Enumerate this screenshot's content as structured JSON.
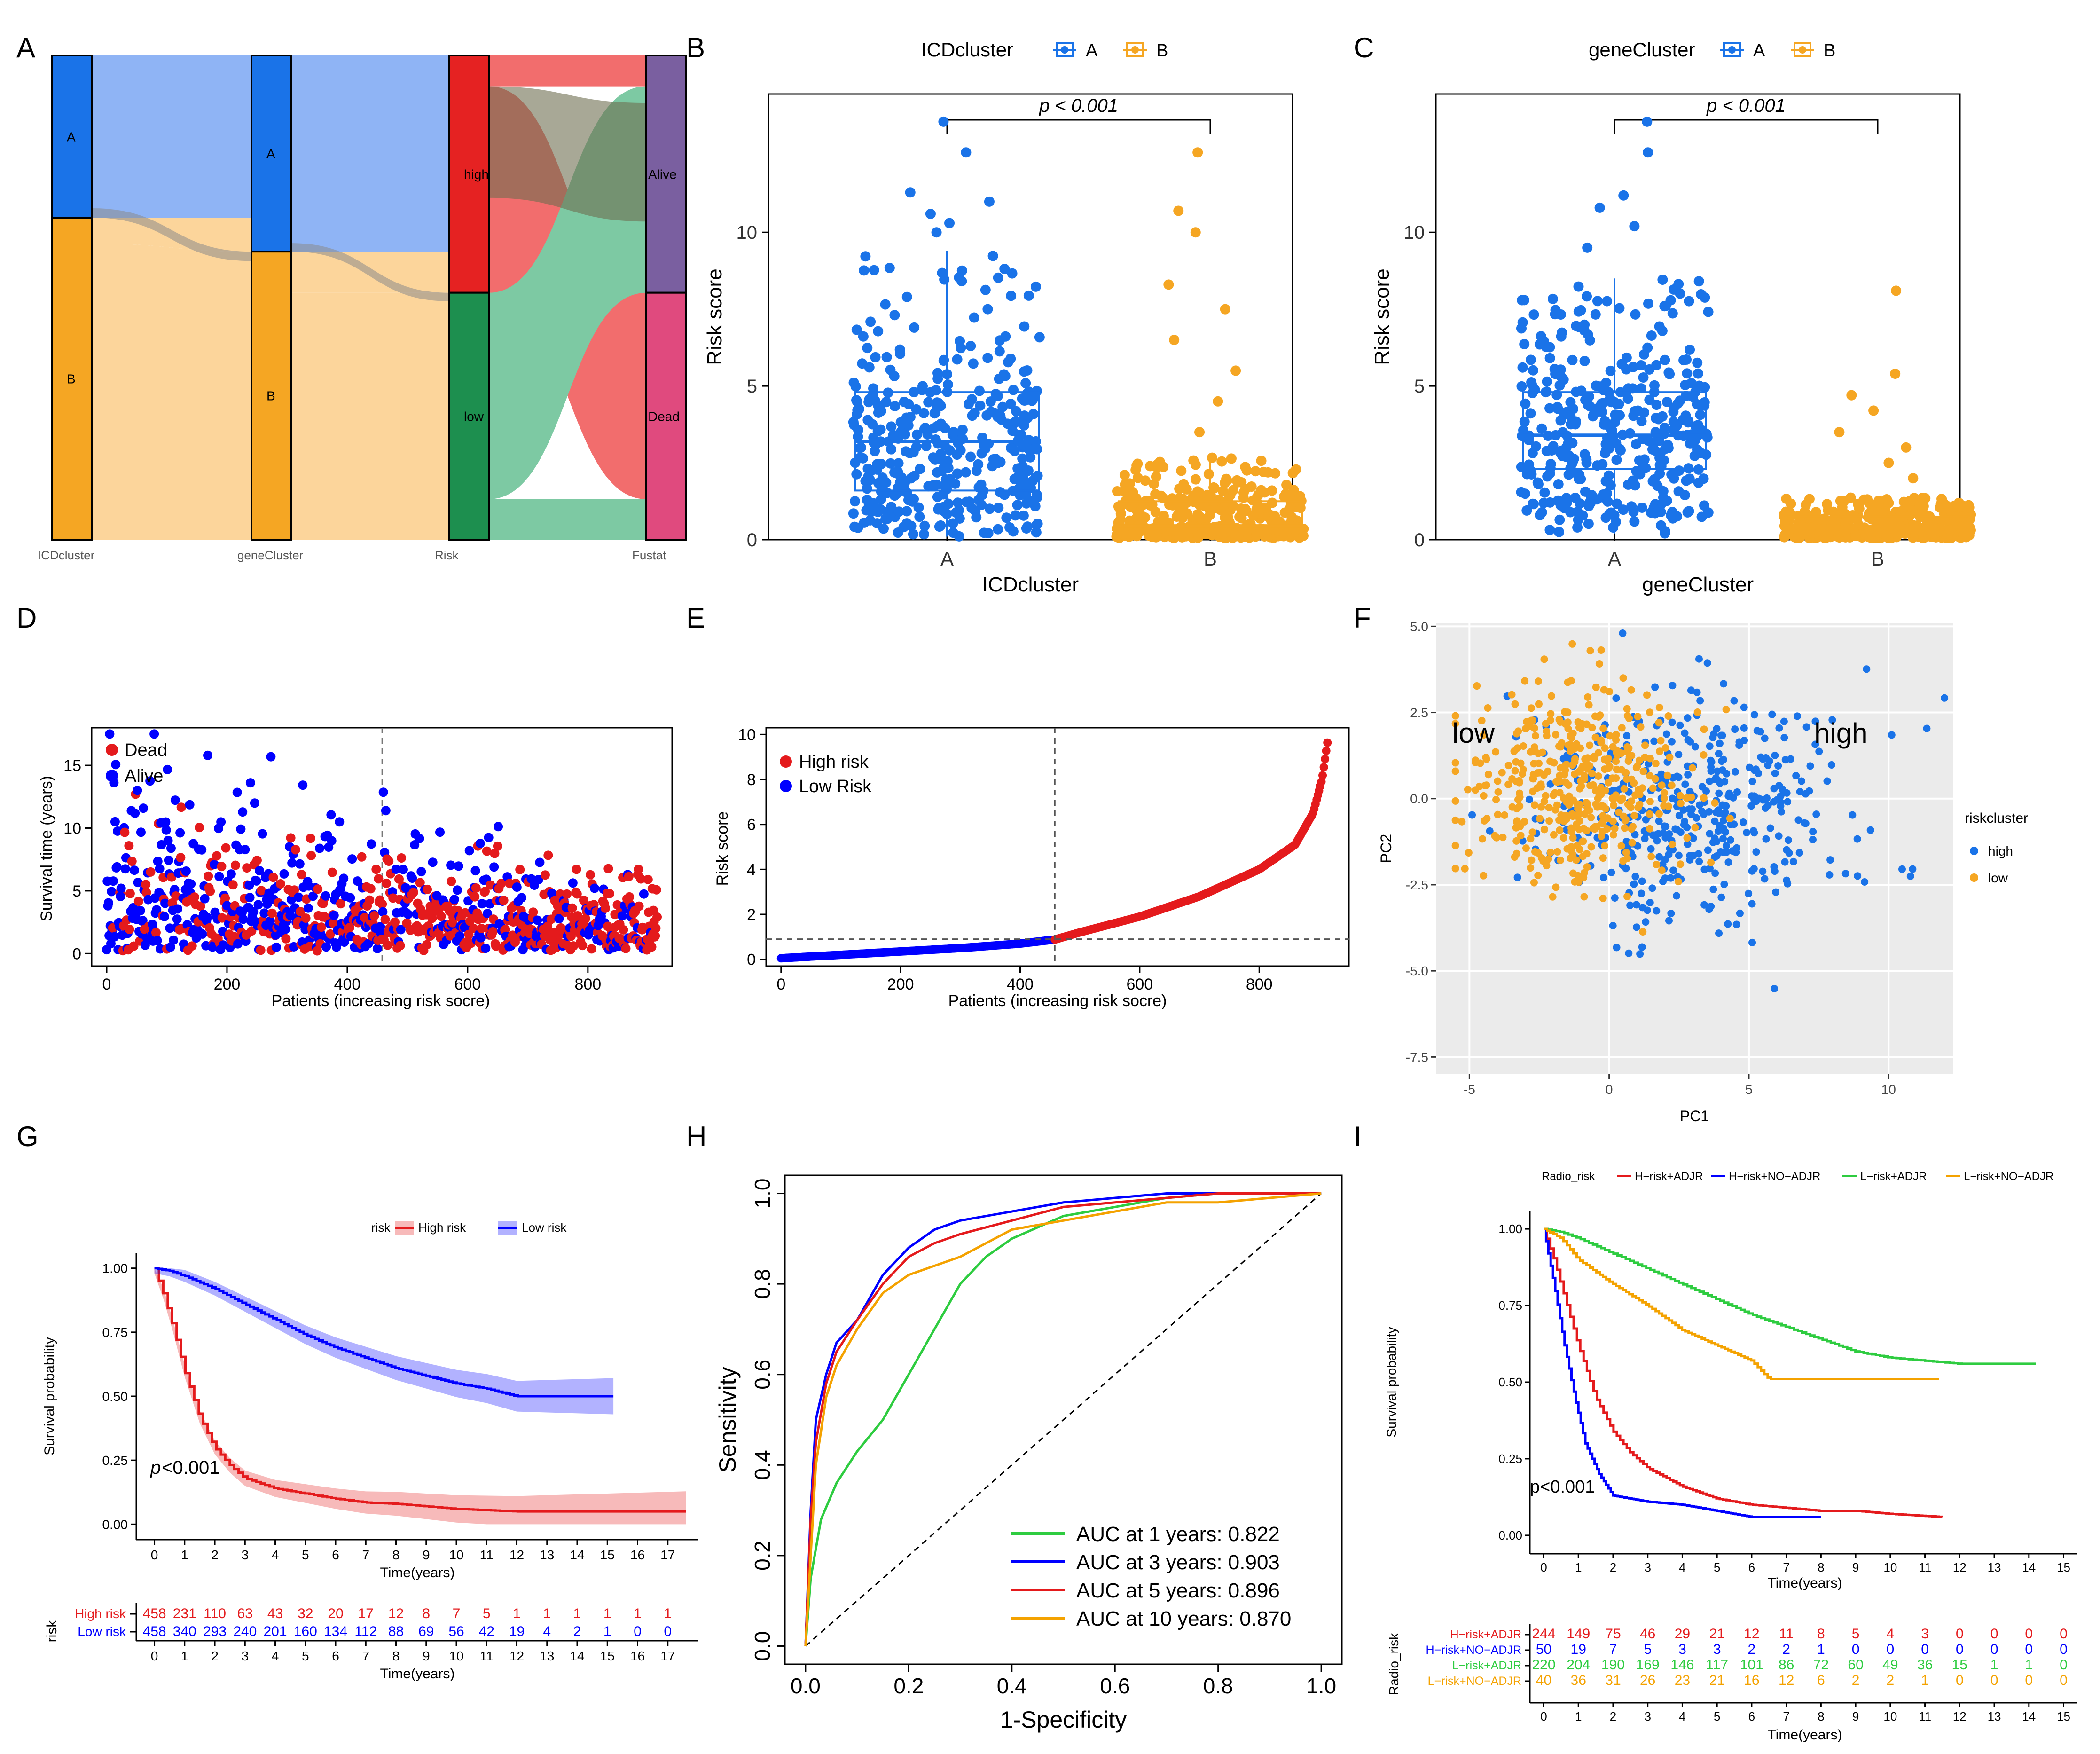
{
  "colors": {
    "blue": "#1a73e8",
    "orange": "#f5a623",
    "red": "#e41a1c",
    "dblue": "#0000ff",
    "green": "#2ecc40",
    "gold": "#f4a200",
    "sankeyBlue": "#8fb4f5",
    "sankeyOrange": "#fcd59b",
    "riskHigh": "#f26d6d",
    "riskLow": "#7dc9a3",
    "alive": "#7a5fa0",
    "dead": "#e04a7e",
    "high": "#e52222",
    "low": "#1d8f4f"
  },
  "panels": {
    "A": "A",
    "B": "B",
    "C": "C",
    "D": "D",
    "E": "E",
    "F": "F",
    "G": "G",
    "H": "H",
    "I": "I"
  },
  "chart_data": [
    {
      "id": "A",
      "type": "sankey",
      "axes": [
        "ICDcluster",
        "geneCluster",
        "Risk",
        "Fustat"
      ],
      "nodes": {
        "ICDcluster": [
          {
            "name": "A",
            "share": 0.335
          },
          {
            "name": "B",
            "share": 0.665
          }
        ],
        "geneCluster": [
          {
            "name": "A",
            "share": 0.405
          },
          {
            "name": "B",
            "share": 0.595
          }
        ],
        "Risk": [
          {
            "name": "high",
            "share": 0.49
          },
          {
            "name": "low",
            "share": 0.51
          }
        ],
        "Fustat": [
          {
            "name": "Alive",
            "share": 0.49
          },
          {
            "name": "Dead",
            "share": 0.51
          }
        ]
      }
    },
    {
      "id": "B",
      "type": "box",
      "title": "ICDcluster",
      "legend": [
        "A",
        "B"
      ],
      "xlabel": "ICDcluster",
      "ylabel": "Risk score",
      "categories": [
        "A",
        "B"
      ],
      "ylim": [
        0,
        14.5
      ],
      "yticks": [
        0,
        5,
        10
      ],
      "pvalue": "p < 0.001",
      "boxes": [
        {
          "name": "A",
          "min": 0.1,
          "q1": 1.6,
          "median": 3.2,
          "q3": 4.8,
          "max": 9.4,
          "outliers": [
            10,
            10.3,
            10.6,
            11.0,
            11.3,
            12.6,
            13.6
          ]
        },
        {
          "name": "B",
          "min": 0.05,
          "q1": 0.25,
          "median": 0.45,
          "q3": 1.25,
          "max": 2.7,
          "outliers": [
            3.5,
            4.5,
            5.5,
            6.5,
            7.5,
            8.3,
            10.0,
            10.7,
            12.6
          ]
        }
      ]
    },
    {
      "id": "C",
      "type": "box",
      "title": "geneCluster",
      "legend": [
        "A",
        "B"
      ],
      "xlabel": "geneCluster",
      "ylabel": "Risk score",
      "categories": [
        "A",
        "B"
      ],
      "ylim": [
        0,
        14.5
      ],
      "yticks": [
        0,
        5,
        10
      ],
      "pvalue": "p < 0.001",
      "boxes": [
        {
          "name": "A",
          "min": 0.2,
          "q1": 2.3,
          "median": 3.4,
          "q3": 4.8,
          "max": 8.5,
          "outliers": [
            9.5,
            10.2,
            10.8,
            11.2,
            12.6,
            13.6
          ]
        },
        {
          "name": "B",
          "min": 0.05,
          "q1": 0.25,
          "median": 0.4,
          "q3": 0.75,
          "max": 1.4,
          "outliers": [
            2,
            2.5,
            3,
            3.5,
            4.2,
            4.7,
            5.4,
            8.1
          ]
        }
      ]
    },
    {
      "id": "D",
      "type": "scatter",
      "xlabel": "Patients (increasing risk socre)",
      "ylabel": "Survival time (years)",
      "xlim": [
        0,
        912
      ],
      "ylim": [
        0,
        18
      ],
      "xticks": [
        0,
        200,
        400,
        600,
        800
      ],
      "yticks": [
        0,
        5,
        10,
        15
      ],
      "cutoff": 458,
      "n": 916,
      "legend": [
        "Dead",
        "Alive"
      ]
    },
    {
      "id": "E",
      "type": "scatter",
      "xlabel": "Patients (increasing risk socre)",
      "ylabel": "Risk score",
      "xlim": [
        0,
        916
      ],
      "ylim": [
        0,
        10.3
      ],
      "xticks": [
        0,
        200,
        400,
        600,
        800
      ],
      "yticks": [
        0,
        2,
        4,
        6,
        8,
        10
      ],
      "cutoff_x": 458,
      "cutoff_y": 0.9,
      "legend": [
        "High risk",
        "Low Risk"
      ],
      "curve": [
        [
          0,
          0.05
        ],
        [
          100,
          0.2
        ],
        [
          200,
          0.35
        ],
        [
          300,
          0.5
        ],
        [
          400,
          0.7
        ],
        [
          458,
          0.88
        ],
        [
          500,
          1.2
        ],
        [
          600,
          1.9
        ],
        [
          700,
          2.8
        ],
        [
          800,
          4.0
        ],
        [
          860,
          5.1
        ],
        [
          890,
          6.5
        ],
        [
          905,
          8.0
        ],
        [
          916,
          10.0
        ]
      ]
    },
    {
      "id": "F",
      "type": "scatter",
      "xlabel": "PC1",
      "ylabel": "PC2",
      "xlim": [
        -6.2,
        12.3
      ],
      "ylim": [
        -8.0,
        5.1
      ],
      "xticks": [
        -5,
        0,
        5,
        10
      ],
      "yticks": [
        5.0,
        2.5,
        0.0,
        -2.5,
        -5.0,
        -7.5
      ],
      "ytick_labels": [
        "5.0",
        "2.5",
        "0.0",
        "-2.5",
        "-5.0",
        "-7.5"
      ],
      "legend_title": "riskcluster",
      "legend": [
        "high",
        "low"
      ],
      "annotations": [
        "low",
        "high"
      ]
    },
    {
      "id": "G",
      "type": "line",
      "legend_title": "risk",
      "legend": [
        "High risk",
        "Low risk"
      ],
      "xlabel": "Time(years)",
      "ylabel": "Survival probability",
      "xticks": [
        0,
        1,
        2,
        3,
        4,
        5,
        6,
        7,
        8,
        9,
        10,
        11,
        12,
        13,
        14,
        15,
        16,
        17
      ],
      "yticks": [
        0.0,
        0.25,
        0.5,
        0.75,
        1.0
      ],
      "ytick_labels": [
        "0.00",
        "0.25",
        "0.50",
        "0.75",
        "1.00"
      ],
      "pvalue_prefix": "p",
      "pvalue_suffix": "<0.001",
      "series": [
        {
          "name": "High risk",
          "x": [
            0,
            0.3,
            0.6,
            1.0,
            1.5,
            2.0,
            2.5,
            3.0,
            4.0,
            5.0,
            6.0,
            7.0,
            8.0,
            9.0,
            10.0,
            11.0,
            12.0,
            17.6
          ],
          "y": [
            1.0,
            0.9,
            0.78,
            0.6,
            0.42,
            0.3,
            0.23,
            0.18,
            0.14,
            0.12,
            0.1,
            0.085,
            0.08,
            0.07,
            0.06,
            0.055,
            0.05,
            0.05
          ]
        },
        {
          "name": "Low risk",
          "x": [
            0,
            0.5,
            1,
            2,
            3,
            4,
            5,
            6,
            7,
            8,
            9,
            10,
            11,
            12,
            13,
            15.2
          ],
          "y": [
            1.0,
            0.99,
            0.97,
            0.92,
            0.86,
            0.8,
            0.74,
            0.69,
            0.65,
            0.61,
            0.58,
            0.55,
            0.53,
            0.5,
            0.5,
            0.5
          ]
        }
      ],
      "risk_table": {
        "title": "risk",
        "rows": [
          {
            "name": "High risk",
            "values": [
              "458",
              "231",
              "110",
              "63",
              "43",
              "32",
              "20",
              "17",
              "12",
              "8",
              "7",
              "5",
              "1",
              "1",
              "1",
              "1",
              "1",
              "1"
            ]
          },
          {
            "name": "Low risk",
            "values": [
              "458",
              "340",
              "293",
              "240",
              "201",
              "160",
              "134",
              "112",
              "88",
              "69",
              "56",
              "42",
              "19",
              "4",
              "2",
              "1",
              "0",
              "0"
            ]
          }
        ],
        "xlabel": "Time(years)"
      }
    },
    {
      "id": "H",
      "type": "line",
      "xlabel": "1-Specificity",
      "ylabel": "Sensitivity",
      "xticks": [
        0.0,
        0.2,
        0.4,
        0.6,
        0.8,
        1.0
      ],
      "yticks": [
        0.0,
        0.2,
        0.4,
        0.6,
        0.8,
        1.0
      ],
      "tick_labels": [
        "0.0",
        "0.2",
        "0.4",
        "0.6",
        "0.8",
        "1.0"
      ],
      "legend": [
        "AUC at 1 years: 0.822",
        "AUC at 3 years: 0.903",
        "AUC at 5 years: 0.896",
        "AUC at 10 years: 0.870"
      ],
      "series": [
        {
          "name": "AUC at 1 years: 0.822",
          "x": [
            0,
            0.01,
            0.03,
            0.06,
            0.1,
            0.15,
            0.2,
            0.25,
            0.3,
            0.35,
            0.4,
            0.5,
            0.6,
            0.7,
            0.8,
            0.9,
            1.0
          ],
          "y": [
            0,
            0.15,
            0.28,
            0.36,
            0.43,
            0.5,
            0.6,
            0.7,
            0.8,
            0.86,
            0.9,
            0.95,
            0.97,
            0.99,
            1.0,
            1.0,
            1.0
          ]
        },
        {
          "name": "AUC at 3 years: 0.903",
          "x": [
            0,
            0.01,
            0.02,
            0.04,
            0.06,
            0.1,
            0.15,
            0.2,
            0.25,
            0.3,
            0.4,
            0.5,
            0.6,
            0.7,
            0.8,
            1.0
          ],
          "y": [
            0,
            0.3,
            0.5,
            0.6,
            0.67,
            0.72,
            0.82,
            0.88,
            0.92,
            0.94,
            0.96,
            0.98,
            0.99,
            1.0,
            1.0,
            1.0
          ]
        },
        {
          "name": "AUC at 5 years: 0.896",
          "x": [
            0,
            0.01,
            0.02,
            0.04,
            0.06,
            0.1,
            0.15,
            0.2,
            0.25,
            0.3,
            0.4,
            0.5,
            0.6,
            0.7,
            0.8,
            1.0
          ],
          "y": [
            0,
            0.28,
            0.45,
            0.58,
            0.65,
            0.72,
            0.8,
            0.86,
            0.89,
            0.91,
            0.94,
            0.97,
            0.98,
            0.99,
            1.0,
            1.0
          ]
        },
        {
          "name": "AUC at 10 years: 0.870",
          "x": [
            0,
            0.01,
            0.02,
            0.04,
            0.06,
            0.1,
            0.15,
            0.2,
            0.3,
            0.4,
            0.5,
            0.6,
            0.7,
            0.8,
            0.9,
            1.0
          ],
          "y": [
            0,
            0.2,
            0.4,
            0.55,
            0.62,
            0.7,
            0.78,
            0.82,
            0.86,
            0.92,
            0.94,
            0.96,
            0.98,
            0.98,
            0.99,
            1.0
          ]
        }
      ]
    },
    {
      "id": "I",
      "type": "line",
      "legend_title": "Radio_risk",
      "legend": [
        "H−risk+ADJR",
        "H−risk+NO−ADJR",
        "L−risk+ADJR",
        "L−risk+NO−ADJR"
      ],
      "xlabel": "Time(years)",
      "ylabel": "Survival probability",
      "xticks": [
        0,
        1,
        2,
        3,
        4,
        5,
        6,
        7,
        8,
        9,
        10,
        11,
        12,
        13,
        14,
        15
      ],
      "yticks": [
        0.0,
        0.25,
        0.5,
        0.75,
        1.0
      ],
      "ytick_labels": [
        "0.00",
        "0.25",
        "0.50",
        "0.75",
        "1.00"
      ],
      "pvalue": "p<0.001",
      "series": [
        {
          "name": "H−risk+ADJR",
          "x": [
            0,
            0.3,
            0.6,
            1.0,
            1.5,
            2.0,
            2.5,
            3.0,
            4.0,
            5.0,
            6.0,
            7.0,
            8.0,
            9.0,
            10.0,
            11.5
          ],
          "y": [
            1.0,
            0.9,
            0.78,
            0.62,
            0.45,
            0.34,
            0.27,
            0.22,
            0.16,
            0.12,
            0.1,
            0.09,
            0.08,
            0.08,
            0.07,
            0.06
          ]
        },
        {
          "name": "H−risk+NO−ADJR",
          "x": [
            0,
            0.3,
            0.6,
            0.9,
            1.2,
            1.6,
            2.0,
            3.0,
            4.0,
            5.0,
            6.0,
            8.0
          ],
          "y": [
            1.0,
            0.82,
            0.62,
            0.45,
            0.3,
            0.2,
            0.13,
            0.11,
            0.1,
            0.08,
            0.06,
            0.06
          ]
        },
        {
          "name": "L−risk+ADJR",
          "x": [
            0,
            0.5,
            1,
            2,
            3,
            4,
            5,
            6,
            7,
            8,
            9,
            10,
            11,
            12,
            13,
            14.2
          ],
          "y": [
            1.0,
            0.99,
            0.97,
            0.92,
            0.87,
            0.82,
            0.77,
            0.72,
            0.68,
            0.64,
            0.6,
            0.58,
            0.57,
            0.56,
            0.56,
            0.56
          ]
        },
        {
          "name": "L−risk+NO−ADJR",
          "x": [
            0,
            0.5,
            1,
            2,
            3,
            4,
            5,
            6,
            6.5,
            7,
            8,
            9,
            11.4
          ],
          "y": [
            1.0,
            0.97,
            0.9,
            0.82,
            0.75,
            0.67,
            0.62,
            0.57,
            0.51,
            0.51,
            0.51,
            0.51,
            0.51
          ]
        }
      ],
      "risk_table": {
        "title": "Radio_risk",
        "rows": [
          {
            "name": "H−risk+ADJR",
            "values": [
              "244",
              "149",
              "75",
              "46",
              "29",
              "21",
              "12",
              "11",
              "8",
              "5",
              "4",
              "3",
              "0",
              "0",
              "0",
              "0"
            ]
          },
          {
            "name": "H−risk+NO−ADJR",
            "values": [
              "50",
              "19",
              "7",
              "5",
              "3",
              "3",
              "2",
              "2",
              "1",
              "0",
              "0",
              "0",
              "0",
              "0",
              "0",
              "0"
            ]
          },
          {
            "name": "L−risk+ADJR",
            "values": [
              "220",
              "204",
              "190",
              "169",
              "146",
              "117",
              "101",
              "86",
              "72",
              "60",
              "49",
              "36",
              "15",
              "1",
              "1",
              "0"
            ]
          },
          {
            "name": "L−risk+NO−ADJR",
            "values": [
              "40",
              "36",
              "31",
              "26",
              "23",
              "21",
              "16",
              "12",
              "6",
              "2",
              "2",
              "1",
              "0",
              "0",
              "0",
              "0"
            ]
          }
        ],
        "xlabel": "Time(years)"
      }
    }
  ]
}
